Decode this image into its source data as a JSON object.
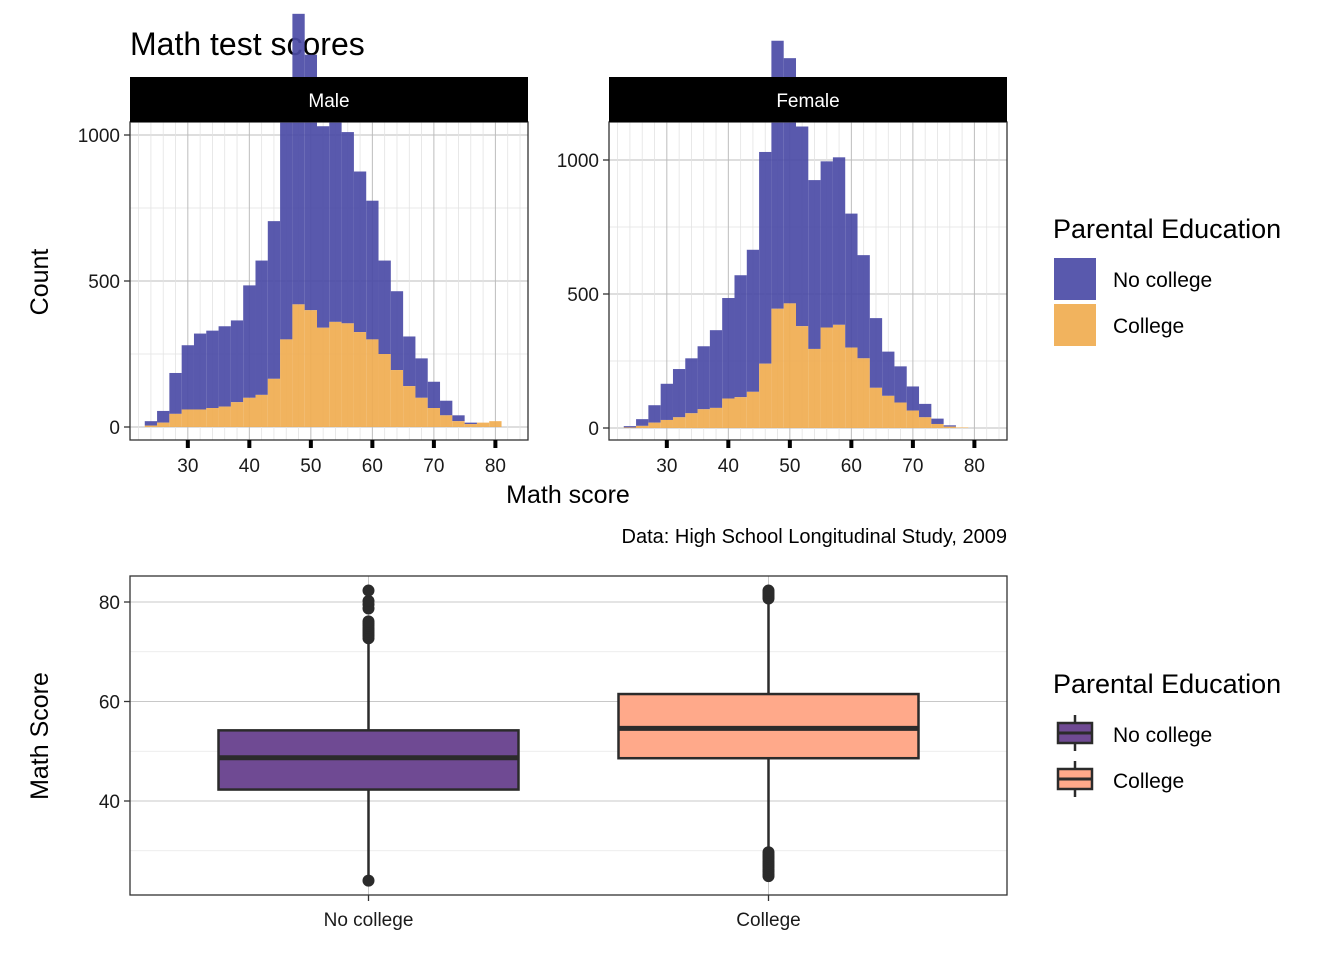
{
  "title": "Math test scores",
  "caption": "Data: High School Longitudinal Study, 2009",
  "colors": {
    "no_college_hist": "#4b4ba6",
    "college_hist": "#f0ad50",
    "no_college_box": "#6f4a93",
    "college_box": "#ffa98a",
    "box_line": "#2b2b2b"
  },
  "chart_data": [
    {
      "type": "histogram",
      "stacked": true,
      "xlabel": "Math score",
      "ylabel": "Count",
      "legend": {
        "title": "Parental Education",
        "entries": [
          "No college",
          "College"
        ],
        "position": "right"
      },
      "facets": [
        {
          "label": "Male",
          "xlim": [
            20.6,
            85.3
          ],
          "ylim": [
            0,
            1000
          ],
          "xticks": [
            30,
            40,
            50,
            60,
            70,
            80
          ],
          "yticks": [
            0,
            500,
            1000
          ],
          "bin_start": 23,
          "bin_width": 2,
          "series": [
            {
              "name": "College",
              "values": [
                5,
                15,
                45,
                60,
                60,
                65,
                70,
                85,
                100,
                110,
                165,
                300,
                420,
                400,
                340,
                360,
                355,
                325,
                300,
                250,
                195,
                140,
                100,
                65,
                40,
                20,
                10,
                15,
                20
              ]
            },
            {
              "name": "No college",
              "values": [
                15,
                40,
                140,
                220,
                260,
                265,
                275,
                280,
                385,
                460,
                540,
                795,
                995,
                875,
                690,
                685,
                655,
                550,
                475,
                320,
                270,
                170,
                135,
                90,
                50,
                20,
                5,
                0,
                0
              ]
            }
          ]
        },
        {
          "label": "Female",
          "xlim": [
            20.6,
            85.3
          ],
          "ylim": [
            0,
            1000
          ],
          "xticks": [
            30,
            40,
            50,
            60,
            70,
            80
          ],
          "yticks": [
            0,
            500,
            1000
          ],
          "bin_start": 23,
          "bin_width": 2,
          "series": [
            {
              "name": "College",
              "values": [
                2,
                8,
                20,
                30,
                40,
                55,
                70,
                75,
                110,
                115,
                135,
                240,
                445,
                465,
                380,
                295,
                375,
                385,
                300,
                260,
                150,
                120,
                95,
                65,
                40,
                15,
                5,
                2,
                0
              ]
            },
            {
              "name": "No college",
              "values": [
                5,
                25,
                65,
                135,
                180,
                205,
                235,
                290,
                375,
                455,
                530,
                790,
                1000,
                915,
                745,
                630,
                620,
                625,
                500,
                385,
                260,
                165,
                135,
                90,
                50,
                20,
                5,
                0,
                0
              ]
            }
          ]
        }
      ]
    },
    {
      "type": "box",
      "ylabel": "Math Score",
      "categories": [
        "No college",
        "College"
      ],
      "ylim": [
        24,
        86
      ],
      "yticks": [
        40,
        60,
        80
      ],
      "legend": {
        "title": "Parental Education",
        "entries": [
          "No college",
          "College"
        ],
        "position": "right"
      },
      "boxes": [
        {
          "name": "No college",
          "whisker_low": 24.1,
          "q1": 42.3,
          "median": 48.7,
          "q3": 54.2,
          "whisker_high": 72.2,
          "outliers": [
            24.0,
            72.7,
            73.2,
            73.6,
            74.0,
            74.4,
            74.8,
            75.3,
            75.7,
            76.1,
            78.7,
            79.5,
            80.2,
            82.3
          ]
        },
        {
          "name": "College",
          "whisker_low": 28.0,
          "q1": 48.6,
          "median": 54.6,
          "q3": 61.5,
          "whisker_high": 80.5,
          "outliers": [
            24.9,
            25.3,
            25.8,
            26.2,
            26.7,
            27.1,
            27.5,
            27.9,
            28.4,
            28.8,
            29.2,
            29.7,
            80.7,
            81.1,
            81.5,
            81.9,
            82.3
          ]
        }
      ]
    }
  ]
}
